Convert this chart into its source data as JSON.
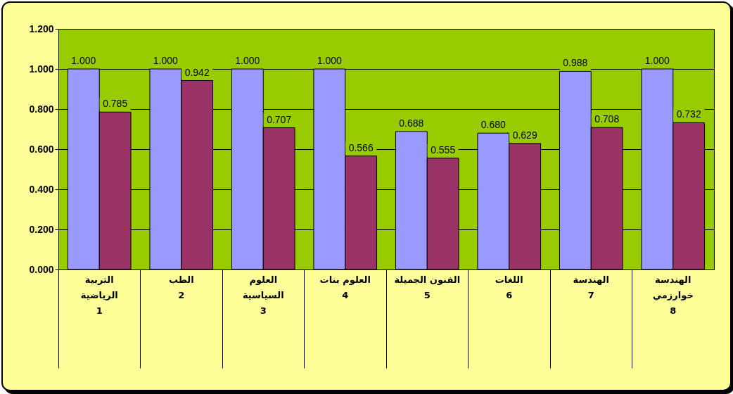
{
  "chart_data": {
    "type": "bar",
    "categories": [
      "التربية\nالرياضية\n\n1",
      "الطب\n\n\n2",
      "العلوم\nالسياسية\n\n3",
      "العلوم بنات\n\n\n4",
      "الفنون الجميلة\n\n\n5",
      "اللغات\n\n\n6",
      "الهندسة\n\n\n7",
      "الهندسة\nخوارزمي\n\n8"
    ],
    "series": [
      {
        "color": "#9999ff",
        "values": [
          1.0,
          1.0,
          1.0,
          1.0,
          0.688,
          0.68,
          0.988,
          1.0
        ],
        "value_labels": [
          "1.000",
          "1.000",
          "1.000",
          "1.000",
          "0.688",
          "0.680",
          "0.988",
          "1.000"
        ]
      },
      {
        "color": "#993366",
        "values": [
          0.785,
          0.942,
          0.707,
          0.566,
          0.555,
          0.629,
          0.708,
          0.732
        ],
        "value_labels": [
          "0.785",
          "0.942",
          "0.707",
          "0.566",
          "0.555",
          "0.629",
          "0.708",
          "0.732"
        ]
      }
    ],
    "ylim": [
      0,
      1.2
    ],
    "yticks": [
      {
        "value": 0,
        "label": "0.000"
      },
      {
        "value": 0.2,
        "label": "0.200"
      },
      {
        "value": 0.4,
        "label": "0.400"
      },
      {
        "value": 0.6,
        "label": "0.600"
      },
      {
        "value": 0.8,
        "label": "0.800"
      },
      {
        "value": 1.0,
        "label": "1.000"
      },
      {
        "value": 1.2,
        "label": "1.200"
      }
    ],
    "grid": "y"
  }
}
